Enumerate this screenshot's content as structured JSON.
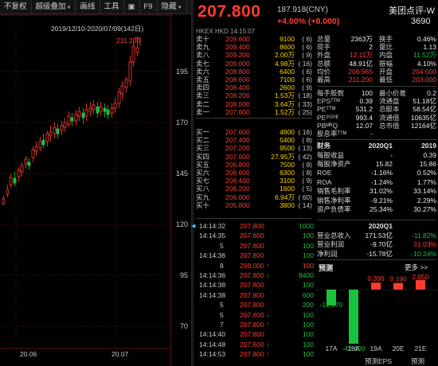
{
  "toolbar": {
    "items": [
      "不复权",
      "超级叠加",
      "画线",
      "工具",
      "⬛",
      "F9",
      "隐藏"
    ]
  },
  "chart": {
    "range_label": "2019/12/10-2020/07/09(142日)",
    "max_label": "211.200",
    "y_ticks": [
      "195",
      "170",
      "145",
      "120",
      "95",
      "70"
    ],
    "x_ticks": [
      "20.06",
      "20.07"
    ]
  },
  "quote": {
    "price": "207.800",
    "price_cny": "187.918(CNY)",
    "change": "+4.00% (+8.000)",
    "name": "美团点评-W",
    "code": "3690",
    "exchange_line": "HKEX  HKD  14:15:07"
  },
  "order_book": {
    "asks": [
      {
        "label": "卖十",
        "price": "209.600",
        "vol": "9100",
        "count": "( 6)"
      },
      {
        "label": "卖九",
        "price": "209.400",
        "vol": "8600",
        "count": "( 6)"
      },
      {
        "label": "卖八",
        "price": "209.200",
        "vol": "2.00万",
        "count": "( 9)"
      },
      {
        "label": "卖七",
        "price": "209.000",
        "vol": "4.98万",
        "count": "( 16)"
      },
      {
        "label": "卖六",
        "price": "208.800",
        "vol": "6400",
        "count": "( 6)"
      },
      {
        "label": "卖五",
        "price": "208.600",
        "vol": "7100",
        "count": "( 6)"
      },
      {
        "label": "卖四",
        "price": "208.400",
        "vol": "2600",
        "count": "( 9)"
      },
      {
        "label": "卖三",
        "price": "208.200",
        "vol": "1.53万",
        "count": "( 18)"
      },
      {
        "label": "卖二",
        "price": "208.000",
        "vol": "3.64万",
        "count": "( 33)"
      },
      {
        "label": "卖一",
        "price": "207.800",
        "vol": "1.52万",
        "count": "( 25)"
      }
    ],
    "bids": [
      {
        "label": "买一",
        "price": "207.600",
        "vol": "4900",
        "count": "( 16)"
      },
      {
        "label": "买二",
        "price": "207.400",
        "vol": "5400",
        "count": "( 8)"
      },
      {
        "label": "买三",
        "price": "207.200",
        "vol": "9500",
        "count": "( 13)"
      },
      {
        "label": "买四",
        "price": "207.000",
        "vol": "27.95万",
        "count": "( 42)"
      },
      {
        "label": "买五",
        "price": "206.800",
        "vol": "7500",
        "count": "( 8)"
      },
      {
        "label": "买六",
        "price": "206.600",
        "vol": "6300",
        "count": "( 8)"
      },
      {
        "label": "买七",
        "price": "206.400",
        "vol": "3100",
        "count": "( 9)"
      },
      {
        "label": "买八",
        "price": "206.200",
        "vol": "1600",
        "count": "( 5)"
      },
      {
        "label": "买九",
        "price": "206.000",
        "vol": "6.94万",
        "count": "( 60)"
      },
      {
        "label": "买十",
        "price": "205.800",
        "vol": "3800",
        "count": "( 14)"
      }
    ]
  },
  "stats": {
    "rows1": [
      {
        "l1": "总量",
        "v1": "2363万",
        "c1": "white",
        "l2": "换手",
        "v2": "0.46%",
        "c2": "white"
      },
      {
        "l1": "现手",
        "v1": "2",
        "c1": "white",
        "l2": "量比",
        "v2": "1.13",
        "c2": "white"
      },
      {
        "l1": "外盘",
        "v1": "12.11万",
        "c1": "red",
        "l2": "内盘",
        "v2": "11.52万",
        "c2": "green"
      },
      {
        "l1": "总额",
        "v1": "48.91亿",
        "c1": "white",
        "l2": "振幅",
        "v2": "4.10%",
        "c2": "white"
      },
      {
        "l1": "均价",
        "v1": "206.965",
        "c1": "red",
        "l2": "开盘",
        "v2": "204.000",
        "c2": "red"
      },
      {
        "l1": "最高",
        "v1": "211.200",
        "c1": "red",
        "l2": "最低",
        "v2": "203.000",
        "c2": "red"
      }
    ],
    "rows2": [
      {
        "l1": "每手股数",
        "v1": "100",
        "c1": "white",
        "l2": "最小价差",
        "v2": "0.2",
        "c2": "white"
      },
      {
        "l1": "EPSᵀᵀᴹ",
        "v1": "0.39",
        "c1": "white",
        "l2": "流通盘",
        "v2": "51.18亿",
        "c2": "white"
      },
      {
        "l1": "PEᵀᵀᴹ",
        "v1": "531.2",
        "c1": "white",
        "l2": "总股本",
        "v2": "58.54亿",
        "c2": "white"
      },
      {
        "l1": "PE²⁰²⁰ᴱ",
        "v1": "993.4",
        "c1": "white",
        "l2": "流通值",
        "v2": "10635亿",
        "c2": "white"
      },
      {
        "l1": "PBᴹᴿQ",
        "v1": "12.07",
        "c1": "white",
        "l2": "总市值",
        "v2": "12164亿",
        "c2": "white"
      },
      {
        "l1": "股息率ᵀᵀᴹ",
        "v1": "-",
        "c1": "white",
        "l2": "",
        "v2": "",
        "c2": "white"
      }
    ]
  },
  "finance": {
    "header": {
      "label": "财务",
      "a": "2020Q1",
      "b": "2019"
    },
    "rows": [
      {
        "label": "每股收益",
        "a": "-",
        "b": "0.39",
        "ca": "white",
        "cb": "white"
      },
      {
        "label": "每股净资产",
        "a": "15.82",
        "b": "15.86",
        "ca": "white",
        "cb": "white"
      },
      {
        "label": "ROE",
        "a": "-1.16%",
        "b": "0.52%",
        "ca": "white",
        "cb": "white"
      },
      {
        "label": "ROA",
        "a": "-1.24%",
        "b": "1.77%",
        "ca": "white",
        "cb": "white"
      },
      {
        "label": "销售毛利率",
        "a": "31.02%",
        "b": "33.14%",
        "ca": "white",
        "cb": "white"
      },
      {
        "label": "销售净利率",
        "a": "-9.21%",
        "b": "2.29%",
        "ca": "white",
        "cb": "white"
      },
      {
        "label": "资产负债率",
        "a": "25.34%",
        "b": "30.27%",
        "ca": "white",
        "cb": "white"
      }
    ],
    "q_header": "2020Q1",
    "q_rows": [
      {
        "label": "营业总收入",
        "a": "171.53亿",
        "b": "-11.82%",
        "cb": "green"
      },
      {
        "label": "营业利润",
        "a": "-9.70亿",
        "b": "31.03%",
        "cb": "red"
      },
      {
        "label": "净利润",
        "a": "-15.78亿",
        "b": "-10.24%",
        "cb": "green"
      }
    ]
  },
  "trades": [
    {
      "time": "14:14:32",
      "price": "207.800",
      "arrow": "",
      "vol": "1000",
      "pc": "red",
      "vc": "green"
    },
    {
      "time": "14:14:35",
      "price": "207.800",
      "arrow": "",
      "vol": "100",
      "pc": "red",
      "vc": "green"
    },
    {
      "time": "5",
      "price": "207.800",
      "arrow": "",
      "vol": "100",
      "pc": "red",
      "vc": "green",
      "small": true
    },
    {
      "time": "14:14:36",
      "price": "207.800",
      "arrow": "",
      "vol": "100",
      "pc": "red",
      "vc": "green"
    },
    {
      "time": "8",
      "price": "208.000",
      "arrow": "↑",
      "vol": "100",
      "pc": "red",
      "vc": "red",
      "small": true
    },
    {
      "time": "14:14:36",
      "price": "207.800",
      "arrow": "↓",
      "vol": "8400",
      "pc": "red",
      "vc": "green"
    },
    {
      "time": "14:14:38",
      "price": "207.800",
      "arrow": "",
      "vol": "100",
      "pc": "red",
      "vc": "green"
    },
    {
      "time": "14:14:38",
      "price": "207.800",
      "arrow": "",
      "vol": "600",
      "pc": "red",
      "vc": "green"
    },
    {
      "time": "5",
      "price": "207.800",
      "arrow": "",
      "vol": "200",
      "pc": "red",
      "vc": "green",
      "small": true
    },
    {
      "time": "5",
      "price": "207.600",
      "arrow": "↓",
      "vol": "100",
      "pc": "red",
      "vc": "green",
      "small": true
    },
    {
      "time": "7",
      "price": "207.800",
      "arrow": "↑",
      "vol": "100",
      "pc": "red",
      "vc": "green",
      "small": true
    },
    {
      "time": "14:14:40",
      "price": "207.800",
      "arrow": "",
      "vol": "100",
      "pc": "red",
      "vc": "green"
    },
    {
      "time": "14:14:48",
      "price": "207.600",
      "arrow": "↓",
      "vol": "100",
      "pc": "red",
      "vc": "green"
    },
    {
      "time": "14:14:53",
      "price": "207.800",
      "arrow": "↑",
      "vol": "100",
      "pc": "red",
      "vc": "green"
    }
  ],
  "prediction": {
    "title": "预测",
    "more": "更多",
    "footer1": "预测EPS",
    "footer2": "预测"
  },
  "chart_data": {
    "type": "bar",
    "categories": [
      "17A",
      "18A",
      "19A",
      "20E",
      "21E"
    ],
    "values": [
      -12.37,
      -42.4,
      0.39,
      0.19,
      2.05
    ],
    "labels": [
      "-12.370",
      "-42.400",
      "0.390",
      "0.190",
      "2.050"
    ],
    "title": "预测",
    "colors": {
      "positive": "#ff3b30",
      "negative": "#19c43c"
    }
  }
}
